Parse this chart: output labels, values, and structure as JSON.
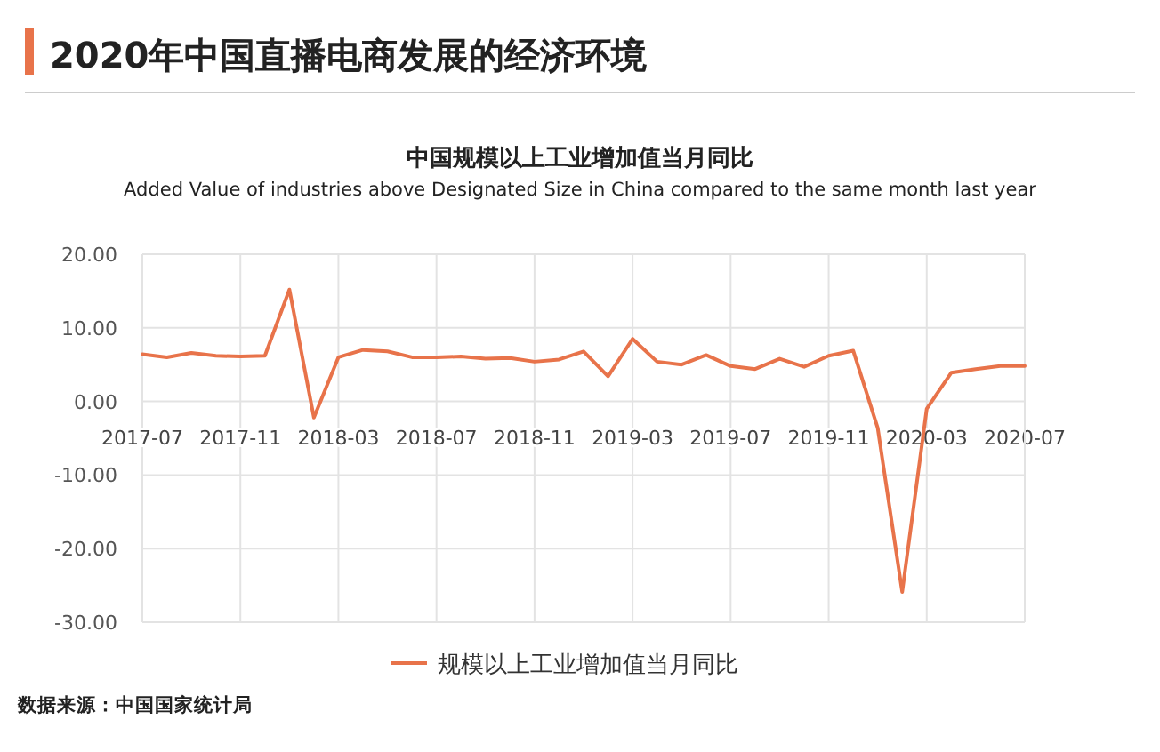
{
  "chart_data": {
    "type": "line",
    "title": "2020年中国直播电商发展的经济环境",
    "subtitle": "中国规模以上工业增加值当月同比",
    "annotations": [
      "Added Value of industries above Designated Size in China compared to the same month  last year",
      "数据来源：中国国家统计局"
    ],
    "x": [
      "2017-07",
      "2017-08",
      "2017-09",
      "2017-10",
      "2017-11",
      "2017-12",
      "2018-01",
      "2018-02",
      "2018-03",
      "2018-04",
      "2018-05",
      "2018-06",
      "2018-07",
      "2018-08",
      "2018-09",
      "2018-10",
      "2018-11",
      "2018-12",
      "2019-01",
      "2019-02",
      "2019-03",
      "2019-04",
      "2019-05",
      "2019-06",
      "2019-07",
      "2019-08",
      "2019-09",
      "2019-10",
      "2019-11",
      "2019-12",
      "2020-01",
      "2020-02",
      "2020-03",
      "2020-04",
      "2020-05",
      "2020-06",
      "2020-07"
    ],
    "series": [
      {
        "name": "规模以上工业增加值当月同比",
        "color": "#e8734a",
        "values": [
          6.4,
          6.0,
          6.6,
          6.2,
          6.1,
          6.2,
          15.2,
          -2.2,
          6.0,
          7.0,
          6.8,
          6.0,
          6.0,
          6.1,
          5.8,
          5.9,
          5.4,
          5.7,
          6.8,
          3.4,
          8.5,
          5.4,
          5.0,
          6.3,
          4.8,
          4.4,
          5.8,
          4.7,
          6.2,
          6.9,
          -3.6,
          -25.9,
          -1.0,
          3.9,
          4.4,
          4.8,
          4.8
        ]
      }
    ],
    "xlim": [
      "2017-07",
      "2020-07"
    ],
    "xticks": [
      "2017-07",
      "2017-11",
      "2018-03",
      "2018-07",
      "2018-11",
      "2019-03",
      "2019-07",
      "2019-11",
      "2020-03",
      "2020-07"
    ],
    "ylim": [
      -30,
      20
    ],
    "yticks": [
      {
        "value": -30,
        "label": "-30.00"
      },
      {
        "value": -20,
        "label": "-20.00"
      },
      {
        "value": -10,
        "label": "-10.00"
      },
      {
        "value": 0,
        "label": "0.00"
      },
      {
        "value": 10,
        "label": "10.00"
      },
      {
        "value": 20,
        "label": "20.00"
      }
    ],
    "grid": true,
    "legend": "bottom",
    "marker": "none",
    "line_style": "solid"
  }
}
